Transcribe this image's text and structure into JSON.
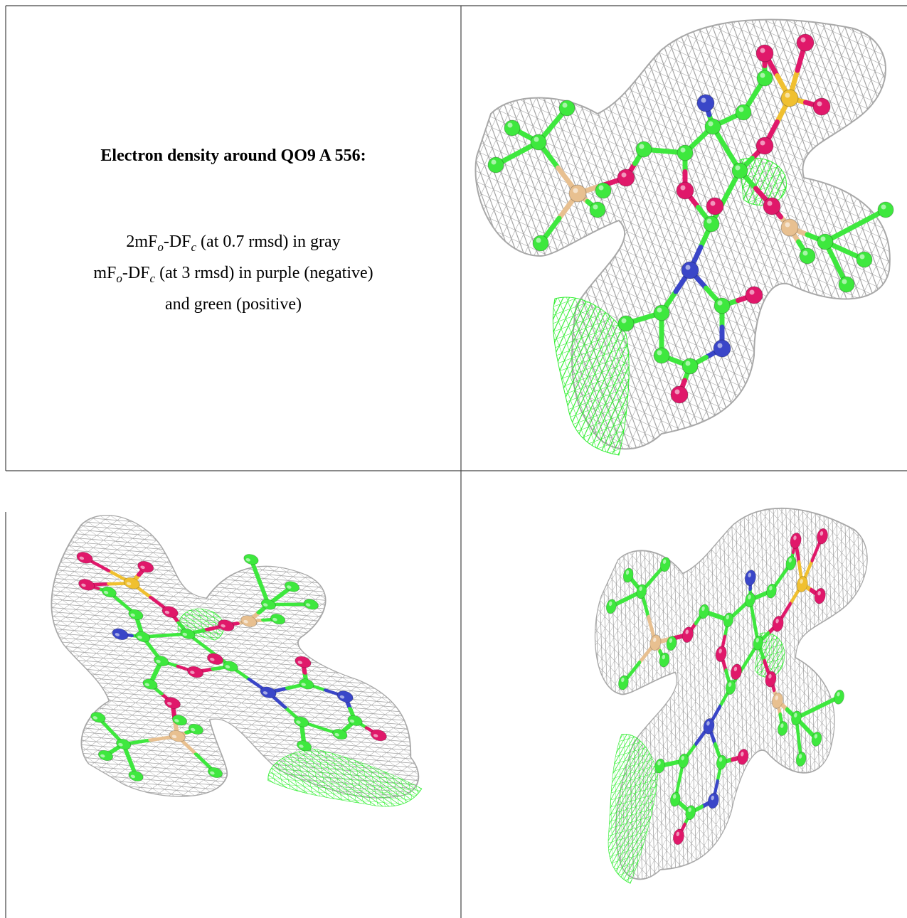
{
  "caption": {
    "title": "Electron density around QO9 A 556:",
    "lines": [
      [
        "2mF",
        "o",
        "-DF",
        "c",
        " (at 0.7 rmsd) in gray"
      ],
      [
        "mF",
        "o",
        "-DF",
        "c",
        " (at 3 rmsd) in purple (negative)"
      ],
      [
        "and green (positive)"
      ]
    ]
  }
}
